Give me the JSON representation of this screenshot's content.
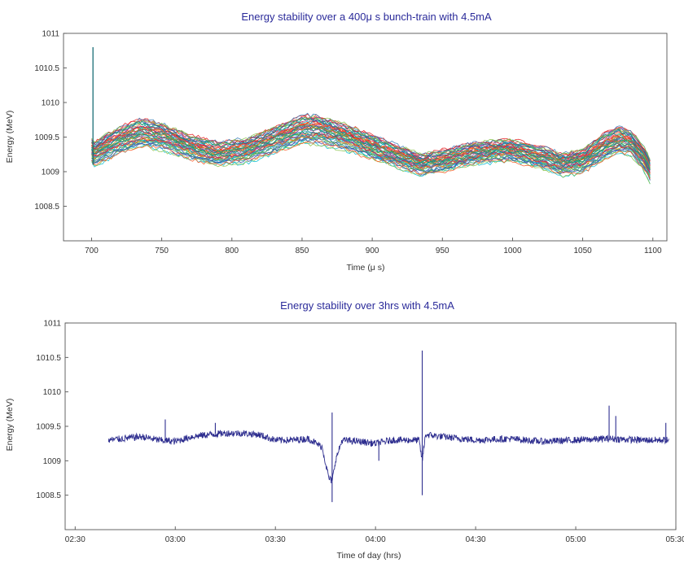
{
  "chart_data": [
    {
      "type": "line",
      "title": "Energy stability over a 400μ s bunch-train with 4.5mA",
      "xlabel": "Time (μ s)",
      "ylabel": "Energy (MeV)",
      "xlim": [
        680,
        1110
      ],
      "ylim": [
        1008,
        1011
      ],
      "xticks": [
        "700",
        "750",
        "800",
        "850",
        "900",
        "950",
        "1000",
        "1050",
        "1100"
      ],
      "yticks": [
        "1011",
        "1010.5",
        "1010",
        "1009.5",
        "1009",
        "1008.5"
      ],
      "grid": false,
      "legend": "none",
      "series_count_note": "many overlapping multicoloured traces",
      "envelope": {
        "x": [
          700,
          702,
          706,
          720,
          735,
          750,
          770,
          790,
          810,
          830,
          850,
          860,
          880,
          900,
          920,
          935,
          950,
          970,
          990,
          1000,
          1020,
          1035,
          1050,
          1065,
          1075,
          1085,
          1095,
          1098
        ],
        "center": [
          1009.3,
          1009.25,
          1009.3,
          1009.45,
          1009.55,
          1009.5,
          1009.35,
          1009.25,
          1009.3,
          1009.45,
          1009.6,
          1009.6,
          1009.5,
          1009.35,
          1009.2,
          1009.1,
          1009.15,
          1009.25,
          1009.3,
          1009.3,
          1009.2,
          1009.1,
          1009.15,
          1009.35,
          1009.45,
          1009.4,
          1009.15,
          1009.0
        ],
        "spread": [
          0.18,
          0.2,
          0.22,
          0.22,
          0.24,
          0.22,
          0.2,
          0.2,
          0.2,
          0.22,
          0.24,
          0.24,
          0.22,
          0.2,
          0.18,
          0.18,
          0.18,
          0.18,
          0.18,
          0.18,
          0.18,
          0.18,
          0.2,
          0.22,
          0.22,
          0.2,
          0.2,
          0.18
        ]
      },
      "spike": {
        "x": 701,
        "y": 1010.8
      },
      "colors": [
        "#e41a1c",
        "#377eb8",
        "#4daf4a",
        "#984ea3",
        "#ff7f00",
        "#1b9e77",
        "#00bcd4",
        "#c2185b",
        "#8bc34a",
        "#3f51b5",
        "#ff5722",
        "#009688"
      ]
    },
    {
      "type": "line",
      "title": "Energy stability over 3hrs with 4.5mA",
      "xlabel": "Time of day (hrs)",
      "ylabel": "Energy (MeV)",
      "xlim": [
        "02:27",
        "05:30"
      ],
      "ylim": [
        1008,
        1011
      ],
      "xticks": [
        "02:30",
        "03:00",
        "03:30",
        "04:00",
        "04:30",
        "05:00",
        "05:30"
      ],
      "yticks": [
        "1011",
        "1010.5",
        "1010",
        "1009.5",
        "1009",
        "1008.5"
      ],
      "grid": false,
      "legend": "none",
      "color": "#2e2e8f",
      "series": {
        "x": [
          "02:40",
          "02:50",
          "02:55",
          "03:00",
          "03:05",
          "03:10",
          "03:15",
          "03:20",
          "03:25",
          "03:30",
          "03:35",
          "03:40",
          "03:44",
          "03:46",
          "03:47",
          "03:48",
          "03:50",
          "03:55",
          "04:00",
          "04:05",
          "04:10",
          "04:13",
          "04:14",
          "04:15",
          "04:20",
          "04:30",
          "04:40",
          "04:50",
          "05:00",
          "05:10",
          "05:20",
          "05:28"
        ],
        "y": [
          1009.3,
          1009.35,
          1009.3,
          1009.28,
          1009.35,
          1009.38,
          1009.4,
          1009.4,
          1009.38,
          1009.3,
          1009.3,
          1009.32,
          1009.2,
          1008.75,
          1008.7,
          1009.0,
          1009.3,
          1009.28,
          1009.25,
          1009.3,
          1009.3,
          1009.3,
          1009.0,
          1009.38,
          1009.35,
          1009.3,
          1009.32,
          1009.28,
          1009.3,
          1009.32,
          1009.3,
          1009.3
        ]
      },
      "spikes": [
        {
          "x": "02:57",
          "y": 1009.6
        },
        {
          "x": "03:12",
          "y": 1009.55
        },
        {
          "x": "03:47",
          "y": 1008.4
        },
        {
          "x": "03:47",
          "y": 1009.7
        },
        {
          "x": "04:14",
          "y": 1010.6
        },
        {
          "x": "04:14",
          "y": 1008.5
        },
        {
          "x": "04:01",
          "y": 1009.0
        },
        {
          "x": "05:10",
          "y": 1009.8
        },
        {
          "x": "05:12",
          "y": 1009.65
        },
        {
          "x": "05:27",
          "y": 1009.55
        }
      ]
    }
  ]
}
